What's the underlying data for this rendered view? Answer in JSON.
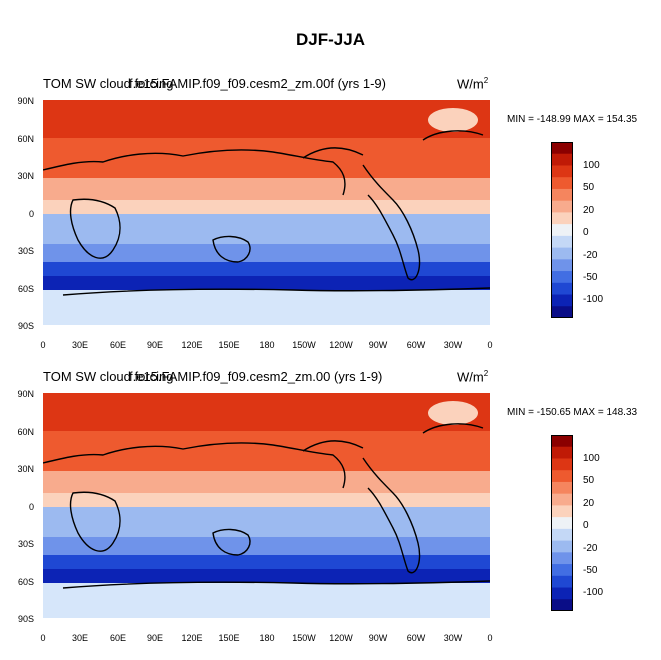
{
  "figure_title": "DJF-JJA",
  "panels": [
    {
      "title_left": "TOM SW cloud forcing",
      "title_overlap": "f.e15.FAMIP.f09_f09.cesm2_zm.00f (yrs 1-9)",
      "units_base": "W/m",
      "units_exp": "2",
      "min_max": "MIN = -148.99 MAX = 154.35",
      "lat_labels": [
        "90N",
        "60N",
        "30N",
        "0",
        "30S",
        "60S",
        "90S"
      ],
      "lon_labels": [
        "0",
        "30E",
        "60E",
        "90E",
        "120E",
        "150E",
        "180",
        "150W",
        "120W",
        "90W",
        "60W",
        "30W",
        "0"
      ],
      "colorbar_labels": [
        "100",
        "50",
        "20",
        "0",
        "-20",
        "-50",
        "-100"
      ]
    },
    {
      "title_left": "TOM SW cloud forcing",
      "title_overlap": "f.e15.FAMIP.f09_f09.cesm2_zm.00 (yrs 1-9)",
      "units_base": "W/m",
      "units_exp": "2",
      "min_max": "MIN = -150.65 MAX = 148.33",
      "lat_labels": [
        "90N",
        "60N",
        "30N",
        "0",
        "30S",
        "60S",
        "90S"
      ],
      "lon_labels": [
        "0",
        "30E",
        "60E",
        "90E",
        "120E",
        "150E",
        "180",
        "150W",
        "120W",
        "90W",
        "60W",
        "30W",
        "0"
      ],
      "colorbar_labels": [
        "100",
        "50",
        "20",
        "0",
        "-20",
        "-50",
        "-100"
      ]
    }
  ],
  "colorbar_colors": [
    "#8b0000",
    "#c01a06",
    "#dd3614",
    "#ee5a2f",
    "#f5855e",
    "#f8ab8d",
    "#fbd2bc",
    "#eef2f6",
    "#c4d8f6",
    "#9cbaf0",
    "#6f93ea",
    "#426ee3",
    "#1f48d3",
    "#0c23b5",
    "#0a0d87"
  ],
  "fill_colors": {
    "ocean_background": "#cfe0f8",
    "arctic": "#e03a18",
    "north_midlat": "#f06a3c",
    "subtropics_north": "#f8ab8d",
    "equator": "#fbd2bc",
    "south_tropics": "#9cbaf0",
    "southern_ocean": "#1f48d3",
    "southern_ocean_core": "#0c23b5",
    "antarctica": "#d6e6fa",
    "coast_line": "#000000"
  }
}
